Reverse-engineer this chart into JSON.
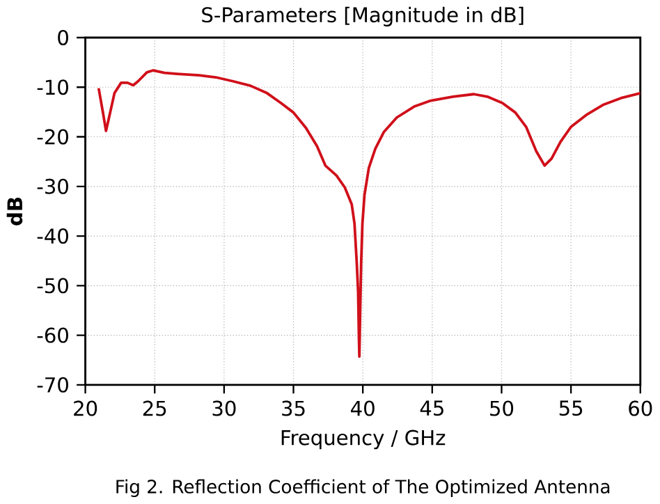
{
  "chart_data": {
    "type": "line",
    "title": "S-Parameters [Magnitude in dB]",
    "xlabel": "Frequency / GHz",
    "ylabel": "dB",
    "xlim": [
      20,
      60
    ],
    "xticks": [
      20,
      25,
      30,
      35,
      40,
      45,
      50,
      55,
      60
    ],
    "ylim": [
      -70,
      0
    ],
    "yticks": [
      -70,
      -60,
      -50,
      -40,
      -30,
      -20,
      -10,
      0
    ],
    "grid": true,
    "line_style": "solid",
    "marker": "none",
    "annotations": [
      "Fig 2. Reflection Coefficient of The Optimized Antenna"
    ],
    "series": [
      {
        "color": "#d0101a",
        "x": [
          20.96,
          21.27,
          21.49,
          21.71,
          22.1,
          22.58,
          23.04,
          23.45,
          23.8,
          24.44,
          24.9,
          25.7,
          26.6,
          28.2,
          29.4,
          30.65,
          31.9,
          33.1,
          34.1,
          35.0,
          35.9,
          36.7,
          37.3,
          38.1,
          38.7,
          39.2,
          39.4,
          39.56,
          39.66,
          39.72,
          39.75,
          39.81,
          39.88,
          39.97,
          40.12,
          40.43,
          40.9,
          41.52,
          42.45,
          43.7,
          44.9,
          46.5,
          48.0,
          48.97,
          50.06,
          50.99,
          51.77,
          52.5,
          53.1,
          53.6,
          54.25,
          55.0,
          56.1,
          57.36,
          58.6,
          60
        ],
        "values": [
          -10.2,
          -15.1,
          -18.8,
          -16.1,
          -11.2,
          -9.1,
          -9.1,
          -9.6,
          -8.8,
          -7.0,
          -6.6,
          -7.1,
          -7.3,
          -7.6,
          -8.0,
          -8.8,
          -9.7,
          -11.2,
          -13.2,
          -15.1,
          -18.2,
          -21.9,
          -25.8,
          -27.8,
          -30.2,
          -33.6,
          -37.5,
          -45.3,
          -51.2,
          -60.9,
          -64.3,
          -55.1,
          -45.3,
          -37.5,
          -31.7,
          -26.3,
          -22.4,
          -19.0,
          -16.1,
          -13.9,
          -12.7,
          -11.9,
          -11.4,
          -11.9,
          -13.2,
          -15.1,
          -18.0,
          -22.9,
          -25.8,
          -24.4,
          -21.0,
          -18.0,
          -15.6,
          -13.5,
          -12.2,
          -11.2
        ]
      }
    ]
  }
}
